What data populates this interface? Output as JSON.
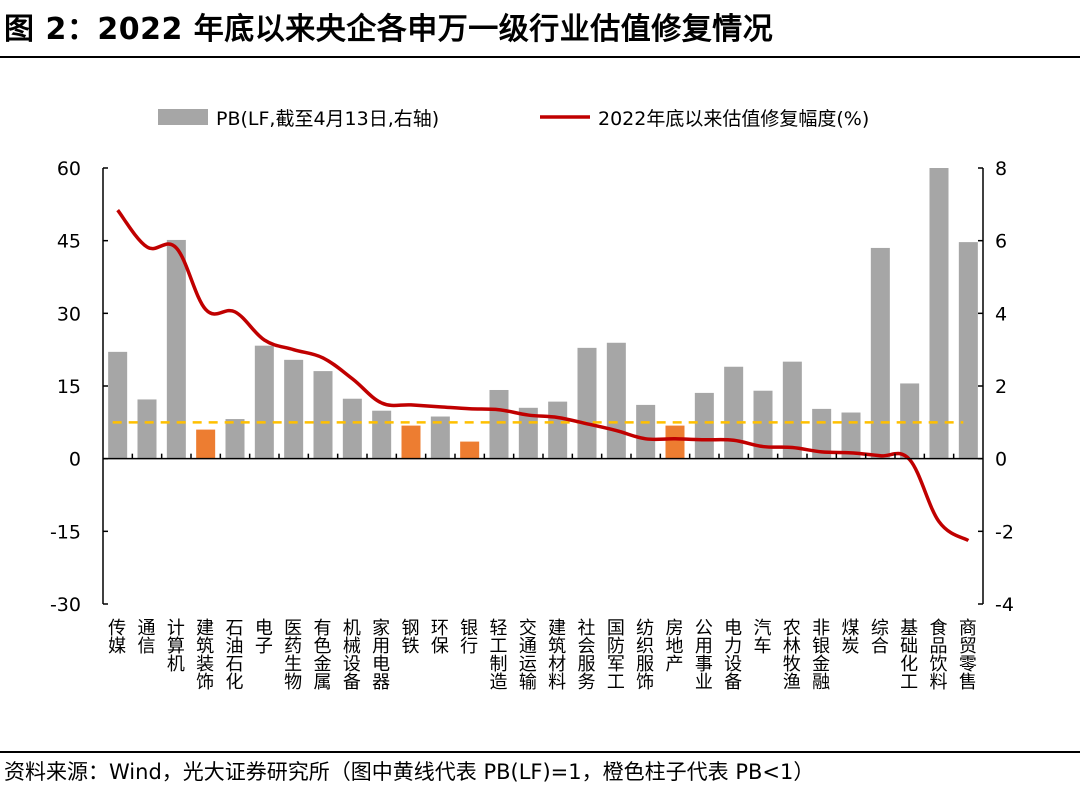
{
  "title": "图 2：2022 年底以来央企各申万一级行业估值修复情况",
  "footer": "资料来源：Wind，光大证券研究所（图中黄线代表 PB(LF)=1，橙色柱子代表 PB<1）",
  "colors": {
    "bar": "#a6a6a6",
    "bar_below_one": "#ed7d31",
    "line": "#c00000",
    "reference": "#ffc000"
  },
  "chart_data": {
    "type": "bar+line",
    "title": "",
    "legend_position": "top",
    "legend": [
      "PB(LF,截至4月13日,右轴)",
      "2022年底以来估值修复幅度(%)"
    ],
    "categories": [
      "传媒",
      "通信",
      "计算机",
      "建筑装饰",
      "石油石化",
      "电子",
      "医药生物",
      "有色金属",
      "机械设备",
      "家用电器",
      "钢铁",
      "环保",
      "银行",
      "轻工制造",
      "交通运输",
      "建筑材料",
      "社会服务",
      "国防军工",
      "纺织服饰",
      "房地产",
      "公用事业",
      "电力设备",
      "汽车",
      "农林牧渔",
      "非银金融",
      "煤炭",
      "综合",
      "基础化工",
      "食品饮料",
      "商贸零售"
    ],
    "left_axis": {
      "range": [
        -30,
        60
      ],
      "ticks": [
        "60",
        "45",
        "30",
        "15",
        "0",
        "-15",
        "-30"
      ],
      "tick_values": [
        60,
        45,
        30,
        15,
        0,
        -15,
        -30
      ]
    },
    "right_axis": {
      "range": [
        -4,
        8
      ],
      "ticks": [
        "8",
        "6",
        "4",
        "2",
        "0",
        "-2",
        "-4"
      ],
      "tick_values": [
        8,
        6,
        4,
        2,
        0,
        -2,
        -4
      ]
    },
    "series": [
      {
        "name": "PB(LF,截至4月13日,右轴)",
        "type": "bar",
        "axis": "right",
        "values": [
          2.94,
          1.63,
          6.02,
          0.8,
          1.09,
          3.11,
          2.72,
          2.41,
          1.65,
          1.32,
          0.91,
          1.16,
          0.47,
          1.89,
          1.4,
          1.57,
          3.05,
          3.19,
          1.48,
          0.91,
          1.81,
          2.53,
          1.87,
          2.67,
          1.37,
          1.27,
          5.8,
          2.07,
          8.0,
          5.96
        ]
      },
      {
        "name": "2022年底以来估值修复幅度(%)",
        "type": "line",
        "axis": "left",
        "values": [
          51.3,
          43.7,
          43.5,
          30.8,
          30.3,
          24.5,
          22.5,
          20.8,
          16.5,
          11.5,
          11.1,
          10.7,
          10.3,
          10.1,
          9.0,
          8.5,
          7.2,
          5.8,
          4.1,
          4.1,
          3.9,
          3.8,
          2.5,
          2.3,
          1.4,
          1.2,
          0.6,
          -0.2,
          -13.0,
          -16.9
        ]
      }
    ],
    "reference_line": {
      "axis": "right",
      "value": 1,
      "style": "dashed"
    }
  }
}
